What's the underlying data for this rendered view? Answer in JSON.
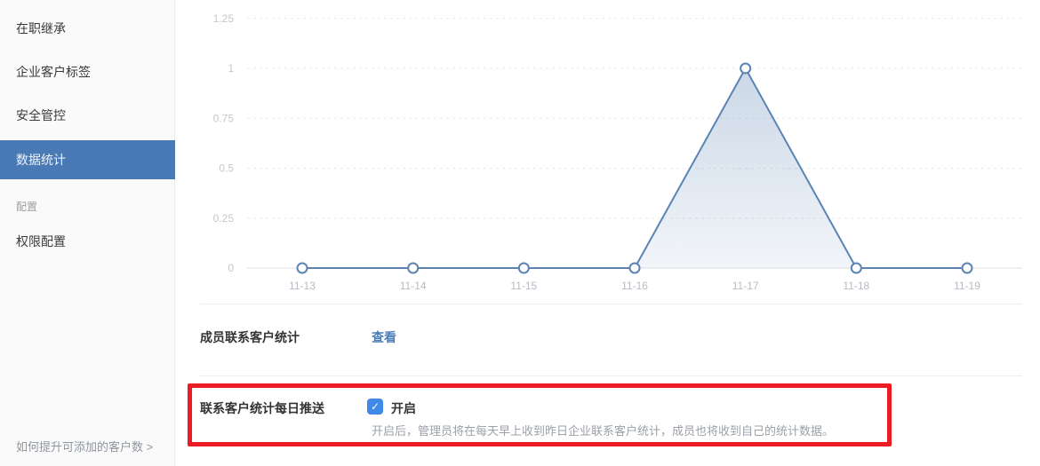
{
  "sidebar": {
    "items": [
      {
        "label": "在职继承",
        "selected": false
      },
      {
        "label": "企业客户标签",
        "selected": false
      },
      {
        "label": "安全管控",
        "selected": false
      },
      {
        "label": "数据统计",
        "selected": true
      },
      {
        "label": "配置",
        "section": true
      },
      {
        "label": "权限配置",
        "selected": false
      }
    ],
    "footer_link": "如何提升可添加的客户数 >"
  },
  "chart_data": {
    "type": "line",
    "x": [
      "11-13",
      "11-14",
      "11-15",
      "11-16",
      "11-17",
      "11-18",
      "11-19"
    ],
    "values": [
      0,
      0,
      0,
      0,
      1,
      0,
      0
    ],
    "yticks": [
      0,
      0.25,
      0.5,
      0.75,
      1,
      1.25
    ],
    "ylim": [
      0,
      1.25
    ],
    "title": "",
    "xlabel": "",
    "ylabel": "",
    "grid": "horizontal-dashed",
    "legend": "none",
    "line_color": "#5b84b4",
    "marker": "open-circle"
  },
  "stats_row": {
    "label": "成员联系客户统计",
    "action_label": "查看"
  },
  "push_row": {
    "label": "联系客户统计每日推送",
    "checkbox_checked": true,
    "toggle_label": "开启",
    "description": "开启后，管理员将在每天早上收到昨日企业联系客户统计，成员也将收到自己的统计数据。"
  },
  "icons": {
    "checkmark": "✓"
  },
  "annotation": {
    "type": "red-highlight-box",
    "color": "#ed1b23"
  },
  "colors": {
    "sidebar_selected_bg": "#4a7ab5",
    "chart_line": "#5b84b4",
    "link_blue": "#4a7eb8",
    "checkbox_blue": "#4189e8",
    "annotation_red": "#ed1b23"
  }
}
